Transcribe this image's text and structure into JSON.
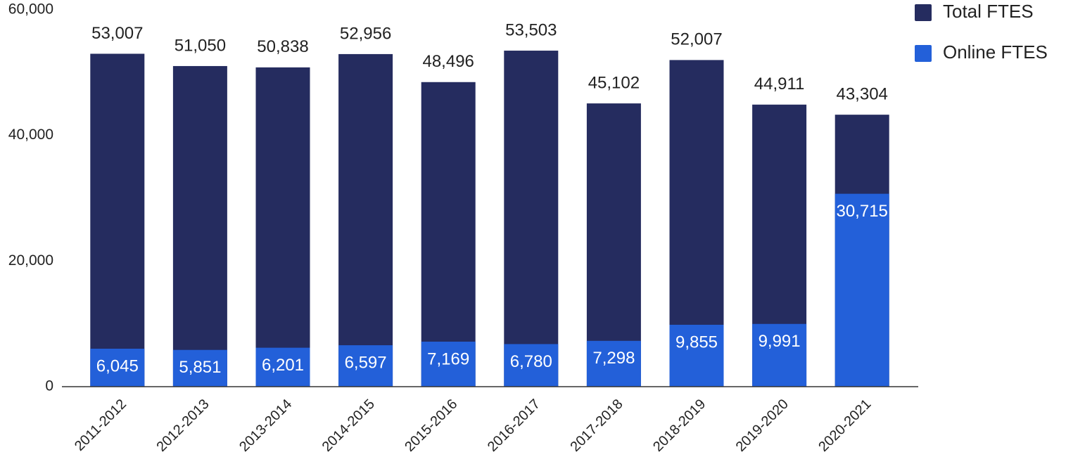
{
  "chart_data": {
    "type": "bar",
    "categories": [
      "2011-2012",
      "2012-2013",
      "2013-2014",
      "2014-2015",
      "2015-2016",
      "2016-2017",
      "2017-2018",
      "2018-2019",
      "2019-2020",
      "2020-2021"
    ],
    "series": [
      {
        "name": "Total FTES",
        "color": "#252c5f",
        "values": [
          53007,
          51050,
          50838,
          52956,
          48496,
          53503,
          45102,
          52007,
          44911,
          43304
        ],
        "value_labels": [
          "53,007",
          "51,050",
          "50,838",
          "52,956",
          "48,496",
          "53,503",
          "45,102",
          "52,007",
          "44,911",
          "43,304"
        ]
      },
      {
        "name": "Online FTES",
        "color": "#2360d9",
        "values": [
          6045,
          5851,
          6201,
          6597,
          7169,
          6780,
          7298,
          9855,
          9991,
          30715
        ],
        "value_labels": [
          "6,045",
          "5,851",
          "6,201",
          "6,597",
          "7,169",
          "6,780",
          "7,298",
          "9,855",
          "9,991",
          "30,715"
        ]
      }
    ],
    "ylim": [
      0,
      60000
    ],
    "yticks": [
      0,
      {
        "value": 20000,
        "label": "20,000"
      },
      {
        "value": 40000,
        "label": "40,000"
      },
      {
        "value": 60000,
        "label": "60,000"
      }
    ],
    "grid": false,
    "legend": "top-right"
  }
}
